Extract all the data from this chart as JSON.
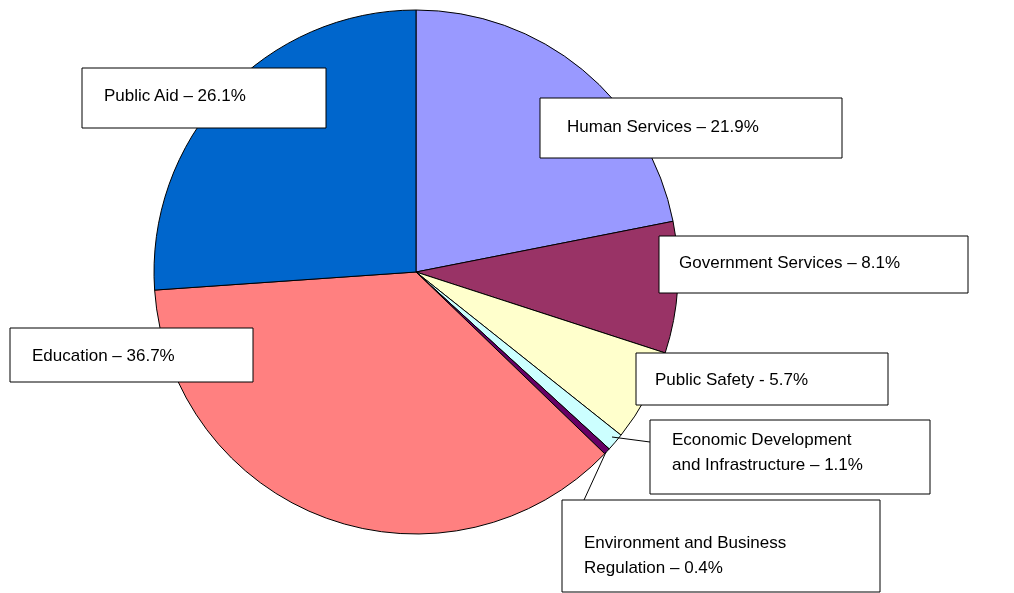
{
  "chart_data": {
    "type": "pie",
    "categories": [
      "Human Services – 21.9%",
      "Government Services – 8.1%",
      "Public Safety - 5.7%",
      "Economic Development\nand Infrastructure – 1.1%",
      "Environment and Business\nRegulation – 0.4%",
      "Education – 36.7%",
      "Public Aid – 26.1%"
    ],
    "values": [
      21.9,
      8.1,
      5.7,
      1.1,
      0.4,
      36.7,
      26.1
    ],
    "colors": [
      "#9999ff",
      "#993366",
      "#ffffcc",
      "#ccffff",
      "#660066",
      "#ff8080",
      "#0066cc"
    ]
  }
}
